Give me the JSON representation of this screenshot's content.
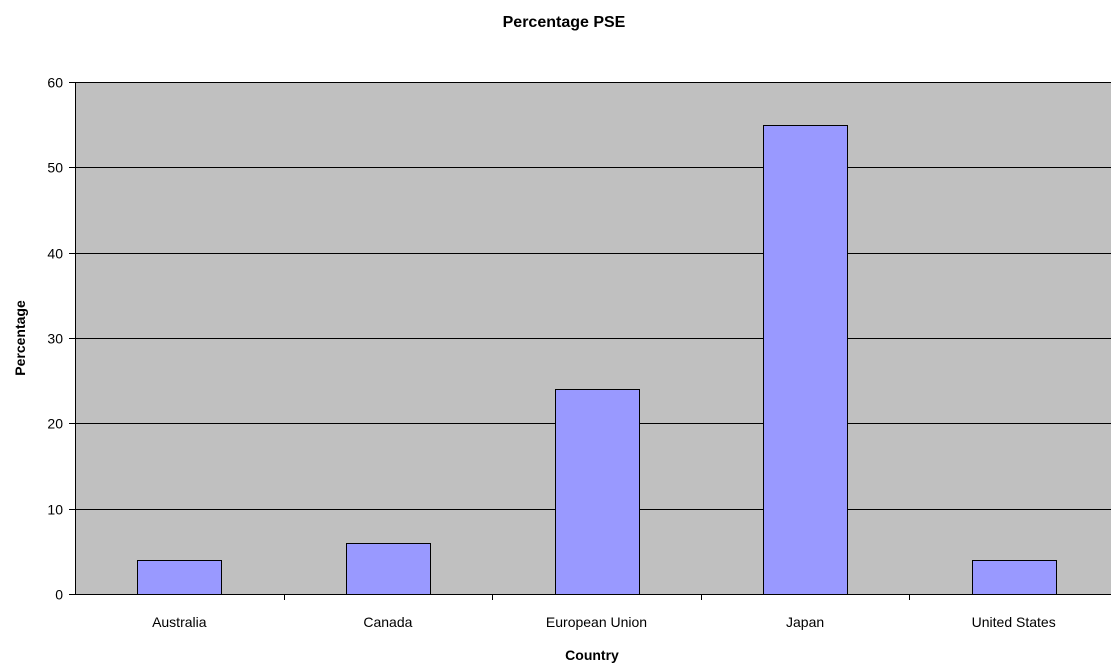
{
  "chart_data": {
    "type": "bar",
    "title": "Percentage PSE",
    "xlabel": "Country",
    "ylabel": "Percentage",
    "categories": [
      "Australia",
      "Canada",
      "European Union",
      "Japan",
      "United States"
    ],
    "values": [
      4,
      6,
      24,
      55,
      4
    ],
    "ylim": [
      0,
      60
    ],
    "yticks": [
      0,
      10,
      20,
      30,
      40,
      50,
      60
    ],
    "grid": true,
    "legend": "none"
  },
  "colors": {
    "plot_background": "#c0c0c0",
    "bar_fill": "#9999ff",
    "bar_stroke": "#000000",
    "gridline": "#000000"
  }
}
